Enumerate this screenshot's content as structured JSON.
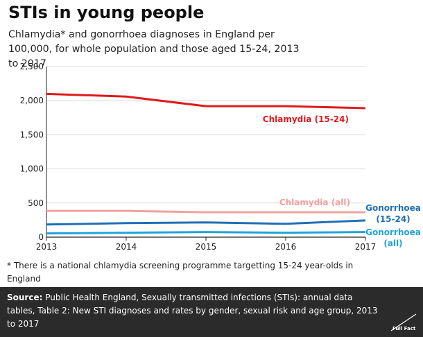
{
  "header": {
    "title": "STIs in young people",
    "subtitle": "Chlamydia* and gonorrhoea diagnoses in England per 100,000, for whole population and those aged 15-24, 2013 to 2017"
  },
  "chart_data": {
    "type": "line",
    "title": "STIs in young people",
    "x": [
      "2013",
      "2014",
      "2015",
      "2016",
      "2017"
    ],
    "ylim": [
      0,
      2500
    ],
    "yticks": [
      0,
      500,
      1000,
      1500,
      2000,
      2500
    ],
    "ytick_labels": [
      "0",
      "500",
      "1,000",
      "1,500",
      "2,000",
      "2,500"
    ],
    "xlabel": "",
    "ylabel": "",
    "series": [
      {
        "name": "Chlamydia (15-24)",
        "label_lines": [
          "Chlamydia (15-24)"
        ],
        "values": [
          2100,
          2060,
          1920,
          1920,
          1890
        ],
        "color": "#e01a1a"
      },
      {
        "name": "Chlamydia (all)",
        "label_lines": [
          "Chlamydia (all)"
        ],
        "values": [
          385,
          385,
          365,
          365,
          365
        ],
        "color": "#f2a0a0"
      },
      {
        "name": "Gonorrhoea (15-24)",
        "label_lines": [
          "Gonorrhoea",
          "(15-24)"
        ],
        "values": [
          185,
          205,
          215,
          195,
          245
        ],
        "color": "#1f6fb5"
      },
      {
        "name": "Gonorrhoea (all)",
        "label_lines": [
          "Gonorrhoea",
          "(all)"
        ],
        "values": [
          55,
          65,
          75,
          65,
          75
        ],
        "color": "#1ea4dc"
      }
    ]
  },
  "footnote": "* There is a national chlamydia screening programme targetting 15-24 year-olds in England",
  "source": {
    "label": "Source:",
    "text": "Public Health England, Sexually transmitted infections (STIs): annual data tables, Table 2: New STI diagnoses and rates by gender, sexual risk and age group, 2013 to 2017"
  },
  "logo_text": "Full Fact"
}
